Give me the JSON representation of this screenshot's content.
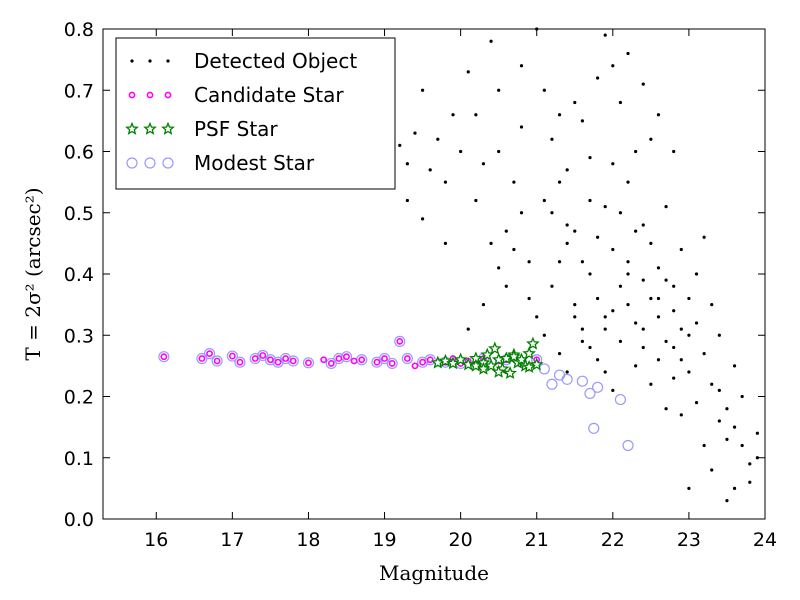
{
  "chart_data": {
    "type": "scatter",
    "title": "",
    "xlabel": "Magnitude",
    "ylabel": "T = 2σ² (arcsec²)",
    "xlim": [
      15.3,
      24
    ],
    "ylim": [
      0.0,
      0.8
    ],
    "xticks": [
      "16",
      "17",
      "18",
      "19",
      "20",
      "21",
      "22",
      "23",
      "24"
    ],
    "yticks": [
      "0.0",
      "0.1",
      "0.2",
      "0.3",
      "0.4",
      "0.5",
      "0.6",
      "0.7",
      "0.8"
    ],
    "grid": false,
    "legend_position": "top-left",
    "series": [
      {
        "name": "Detected Object",
        "marker": "dot",
        "color": "#000000",
        "points": [
          [
            19.0,
            0.6
          ],
          [
            19.1,
            0.64
          ],
          [
            19.2,
            0.61
          ],
          [
            19.3,
            0.58
          ],
          [
            19.4,
            0.63
          ],
          [
            19.5,
            0.7
          ],
          [
            19.6,
            0.57
          ],
          [
            19.7,
            0.62
          ],
          [
            19.8,
            0.55
          ],
          [
            19.9,
            0.66
          ],
          [
            19.3,
            0.52
          ],
          [
            19.5,
            0.49
          ],
          [
            19.8,
            0.45
          ],
          [
            20.0,
            0.6
          ],
          [
            20.1,
            0.73
          ],
          [
            20.2,
            0.66
          ],
          [
            20.3,
            0.58
          ],
          [
            20.4,
            0.78
          ],
          [
            20.5,
            0.7
          ],
          [
            20.6,
            0.47
          ],
          [
            20.7,
            0.55
          ],
          [
            20.8,
            0.64
          ],
          [
            20.9,
            0.42
          ],
          [
            21.0,
            0.8
          ],
          [
            20.2,
            0.52
          ],
          [
            20.4,
            0.45
          ],
          [
            20.6,
            0.38
          ],
          [
            20.7,
            0.44
          ],
          [
            20.8,
            0.5
          ],
          [
            20.9,
            0.36
          ],
          [
            21.0,
            0.33
          ],
          [
            20.5,
            0.41
          ],
          [
            20.3,
            0.35
          ],
          [
            20.1,
            0.31
          ],
          [
            21.1,
            0.7
          ],
          [
            21.2,
            0.62
          ],
          [
            21.3,
            0.55
          ],
          [
            21.4,
            0.48
          ],
          [
            21.5,
            0.68
          ],
          [
            21.6,
            0.42
          ],
          [
            21.7,
            0.59
          ],
          [
            21.8,
            0.36
          ],
          [
            21.9,
            0.51
          ],
          [
            22.0,
            0.74
          ],
          [
            21.1,
            0.3
          ],
          [
            21.2,
            0.38
          ],
          [
            21.3,
            0.27
          ],
          [
            21.4,
            0.45
          ],
          [
            21.5,
            0.33
          ],
          [
            21.6,
            0.29
          ],
          [
            21.7,
            0.4
          ],
          [
            21.8,
            0.26
          ],
          [
            21.9,
            0.31
          ],
          [
            22.0,
            0.44
          ],
          [
            21.2,
            0.5
          ],
          [
            21.4,
            0.57
          ],
          [
            21.6,
            0.65
          ],
          [
            21.8,
            0.72
          ],
          [
            22.0,
            0.58
          ],
          [
            21.3,
            0.42
          ],
          [
            21.5,
            0.35
          ],
          [
            21.7,
            0.28
          ],
          [
            21.9,
            0.24
          ],
          [
            22.0,
            0.21
          ],
          [
            22.1,
            0.68
          ],
          [
            22.2,
            0.55
          ],
          [
            22.3,
            0.47
          ],
          [
            22.4,
            0.39
          ],
          [
            22.5,
            0.62
          ],
          [
            22.6,
            0.33
          ],
          [
            22.7,
            0.51
          ],
          [
            22.8,
            0.28
          ],
          [
            22.9,
            0.44
          ],
          [
            23.0,
            0.36
          ],
          [
            22.1,
            0.29
          ],
          [
            22.2,
            0.35
          ],
          [
            22.3,
            0.25
          ],
          [
            22.4,
            0.31
          ],
          [
            22.5,
            0.22
          ],
          [
            22.6,
            0.41
          ],
          [
            22.7,
            0.18
          ],
          [
            22.8,
            0.34
          ],
          [
            22.9,
            0.26
          ],
          [
            23.0,
            0.3
          ],
          [
            22.2,
            0.42
          ],
          [
            22.4,
            0.48
          ],
          [
            22.6,
            0.26
          ],
          [
            22.8,
            0.38
          ],
          [
            23.0,
            0.24
          ],
          [
            22.3,
            0.6
          ],
          [
            22.5,
            0.36
          ],
          [
            22.7,
            0.29
          ],
          [
            22.9,
            0.17
          ],
          [
            22.1,
            0.38
          ],
          [
            23.1,
            0.32
          ],
          [
            23.2,
            0.27
          ],
          [
            23.3,
            0.22
          ],
          [
            23.4,
            0.3
          ],
          [
            23.5,
            0.18
          ],
          [
            23.6,
            0.25
          ],
          [
            23.7,
            0.12
          ],
          [
            23.8,
            0.09
          ],
          [
            23.9,
            0.14
          ],
          [
            23.1,
            0.4
          ],
          [
            23.2,
            0.12
          ],
          [
            23.3,
            0.08
          ],
          [
            23.4,
            0.16
          ],
          [
            23.5,
            0.03
          ],
          [
            23.6,
            0.05
          ],
          [
            23.7,
            0.2
          ],
          [
            23.8,
            0.06
          ],
          [
            23.9,
            0.1
          ],
          [
            23.0,
            0.05
          ],
          [
            23.2,
            0.46
          ],
          [
            23.4,
            0.21
          ],
          [
            23.6,
            0.15
          ],
          [
            23.1,
            0.19
          ],
          [
            23.3,
            0.35
          ],
          [
            23.5,
            0.13
          ],
          [
            21.4,
            0.24
          ],
          [
            21.6,
            0.31
          ],
          [
            21.8,
            0.46
          ],
          [
            22.0,
            0.34
          ],
          [
            22.2,
            0.4
          ],
          [
            22.4,
            0.28
          ],
          [
            22.6,
            0.36
          ],
          [
            22.8,
            0.23
          ],
          [
            21.5,
            0.47
          ],
          [
            21.7,
            0.52
          ],
          [
            21.9,
            0.33
          ],
          [
            22.1,
            0.5
          ],
          [
            22.3,
            0.32
          ],
          [
            22.5,
            0.45
          ],
          [
            22.7,
            0.39
          ],
          [
            22.9,
            0.31
          ],
          [
            20.5,
            0.6
          ],
          [
            20.8,
            0.74
          ],
          [
            21.1,
            0.52
          ],
          [
            21.3,
            0.66
          ],
          [
            21.9,
            0.79
          ],
          [
            22.2,
            0.76
          ],
          [
            22.4,
            0.71
          ],
          [
            22.6,
            0.66
          ],
          [
            22.8,
            0.6
          ]
        ]
      },
      {
        "name": "Candidate Star",
        "marker": "circle-small",
        "color": "#ff00ff",
        "points": [
          [
            16.1,
            0.265
          ],
          [
            16.6,
            0.262
          ],
          [
            16.7,
            0.27
          ],
          [
            16.8,
            0.258
          ],
          [
            17.0,
            0.266
          ],
          [
            17.1,
            0.256
          ],
          [
            17.3,
            0.262
          ],
          [
            17.4,
            0.267
          ],
          [
            17.5,
            0.26
          ],
          [
            17.6,
            0.256
          ],
          [
            17.7,
            0.262
          ],
          [
            17.8,
            0.258
          ],
          [
            18.0,
            0.255
          ],
          [
            18.2,
            0.26
          ],
          [
            18.3,
            0.254
          ],
          [
            18.4,
            0.262
          ],
          [
            18.5,
            0.265
          ],
          [
            18.6,
            0.258
          ],
          [
            18.7,
            0.26
          ],
          [
            18.9,
            0.256
          ],
          [
            19.0,
            0.262
          ],
          [
            19.1,
            0.254
          ],
          [
            19.2,
            0.29
          ],
          [
            19.3,
            0.262
          ],
          [
            19.4,
            0.25
          ],
          [
            19.5,
            0.256
          ],
          [
            19.6,
            0.26
          ],
          [
            19.8,
            0.256
          ],
          [
            19.9,
            0.262
          ],
          [
            20.0,
            0.254
          ],
          [
            20.1,
            0.258
          ],
          [
            20.3,
            0.262
          ],
          [
            20.5,
            0.258
          ],
          [
            20.6,
            0.26
          ],
          [
            20.8,
            0.256
          ],
          [
            21.0,
            0.26
          ]
        ]
      },
      {
        "name": "PSF Star",
        "marker": "star",
        "color": "#008000",
        "points": [
          [
            19.7,
            0.255
          ],
          [
            19.8,
            0.258
          ],
          [
            19.9,
            0.254
          ],
          [
            20.0,
            0.26
          ],
          [
            20.1,
            0.252
          ],
          [
            20.2,
            0.262
          ],
          [
            20.3,
            0.255
          ],
          [
            20.35,
            0.268
          ],
          [
            20.4,
            0.25
          ],
          [
            20.45,
            0.278
          ],
          [
            20.5,
            0.26
          ],
          [
            20.55,
            0.245
          ],
          [
            20.6,
            0.262
          ],
          [
            20.65,
            0.238
          ],
          [
            20.7,
            0.268
          ],
          [
            20.75,
            0.255
          ],
          [
            20.8,
            0.26
          ],
          [
            20.85,
            0.25
          ],
          [
            20.9,
            0.27
          ],
          [
            20.95,
            0.286
          ],
          [
            21.0,
            0.252
          ],
          [
            20.3,
            0.245
          ],
          [
            20.5,
            0.24
          ],
          [
            20.7,
            0.265
          ],
          [
            20.9,
            0.248
          ],
          [
            20.2,
            0.25
          ]
        ]
      },
      {
        "name": "Modest Star",
        "marker": "circle-open",
        "color": "#9999ff",
        "points": [
          [
            16.1,
            0.265
          ],
          [
            16.6,
            0.262
          ],
          [
            16.7,
            0.27
          ],
          [
            16.8,
            0.258
          ],
          [
            17.0,
            0.266
          ],
          [
            17.1,
            0.256
          ],
          [
            17.3,
            0.262
          ],
          [
            17.4,
            0.267
          ],
          [
            17.5,
            0.26
          ],
          [
            17.6,
            0.256
          ],
          [
            17.7,
            0.262
          ],
          [
            17.8,
            0.258
          ],
          [
            18.0,
            0.255
          ],
          [
            18.3,
            0.254
          ],
          [
            18.4,
            0.262
          ],
          [
            18.5,
            0.265
          ],
          [
            18.7,
            0.26
          ],
          [
            18.9,
            0.256
          ],
          [
            19.0,
            0.262
          ],
          [
            19.1,
            0.254
          ],
          [
            19.2,
            0.29
          ],
          [
            19.3,
            0.262
          ],
          [
            19.5,
            0.256
          ],
          [
            19.6,
            0.26
          ],
          [
            19.8,
            0.256
          ],
          [
            20.0,
            0.254
          ],
          [
            20.3,
            0.262
          ],
          [
            20.6,
            0.26
          ],
          [
            20.8,
            0.256
          ],
          [
            21.0,
            0.26
          ],
          [
            21.1,
            0.245
          ],
          [
            21.2,
            0.22
          ],
          [
            21.3,
            0.235
          ],
          [
            21.4,
            0.228
          ],
          [
            21.6,
            0.225
          ],
          [
            21.7,
            0.205
          ],
          [
            21.75,
            0.148
          ],
          [
            21.8,
            0.215
          ],
          [
            22.1,
            0.195
          ],
          [
            22.2,
            0.12
          ]
        ]
      }
    ]
  }
}
